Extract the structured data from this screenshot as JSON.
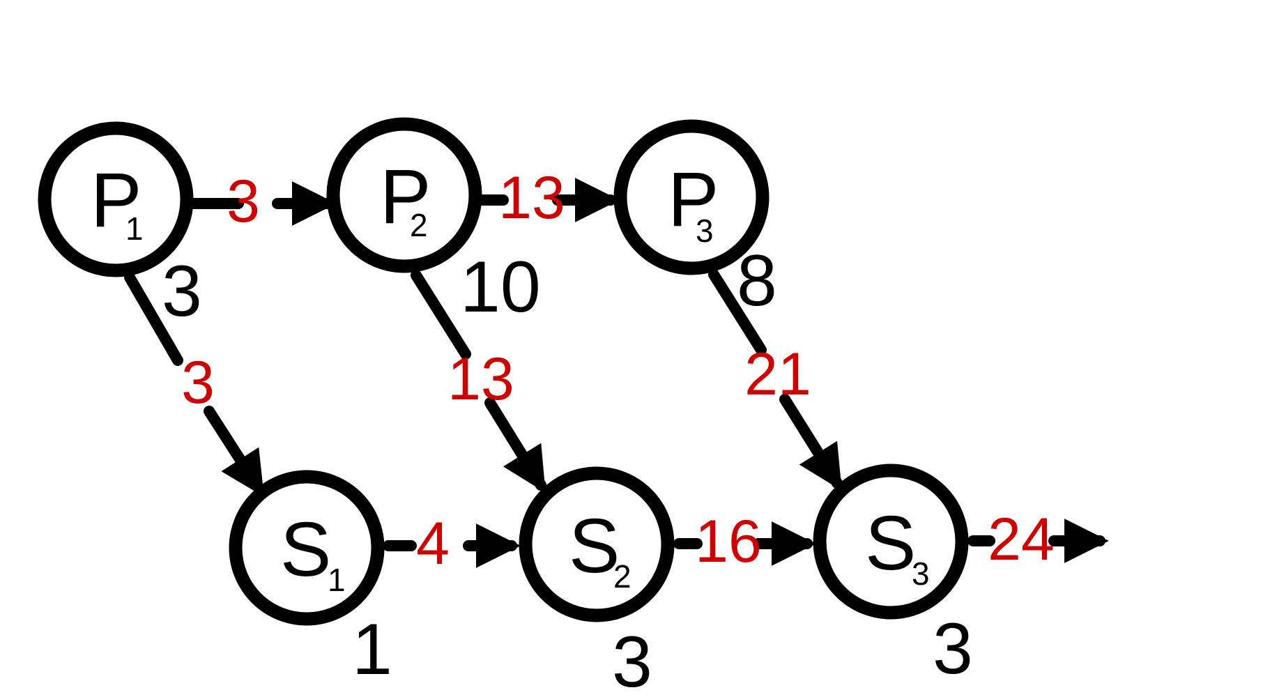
{
  "colors": {
    "node_stroke": "#000000",
    "edge_stroke": "#000000",
    "edge_label": "#cc0000",
    "duration_text": "#000000"
  },
  "nodes": {
    "p1": {
      "letter": "P",
      "index": "1",
      "duration": "3"
    },
    "p2": {
      "letter": "P",
      "index": "2",
      "duration": "10"
    },
    "p3": {
      "letter": "P",
      "index": "3",
      "duration": "8"
    },
    "s1": {
      "letter": "S",
      "index": "1",
      "duration": "1"
    },
    "s2": {
      "letter": "S",
      "index": "2",
      "duration": "3"
    },
    "s3": {
      "letter": "S",
      "index": "3",
      "duration": "3"
    }
  },
  "edges": {
    "p1_p2": "3",
    "p2_p3": "13",
    "p1_s1": "3",
    "p2_s2": "13",
    "p3_s3": "21",
    "s1_s2": "4",
    "s2_s3": "16",
    "s3_out": "24"
  }
}
